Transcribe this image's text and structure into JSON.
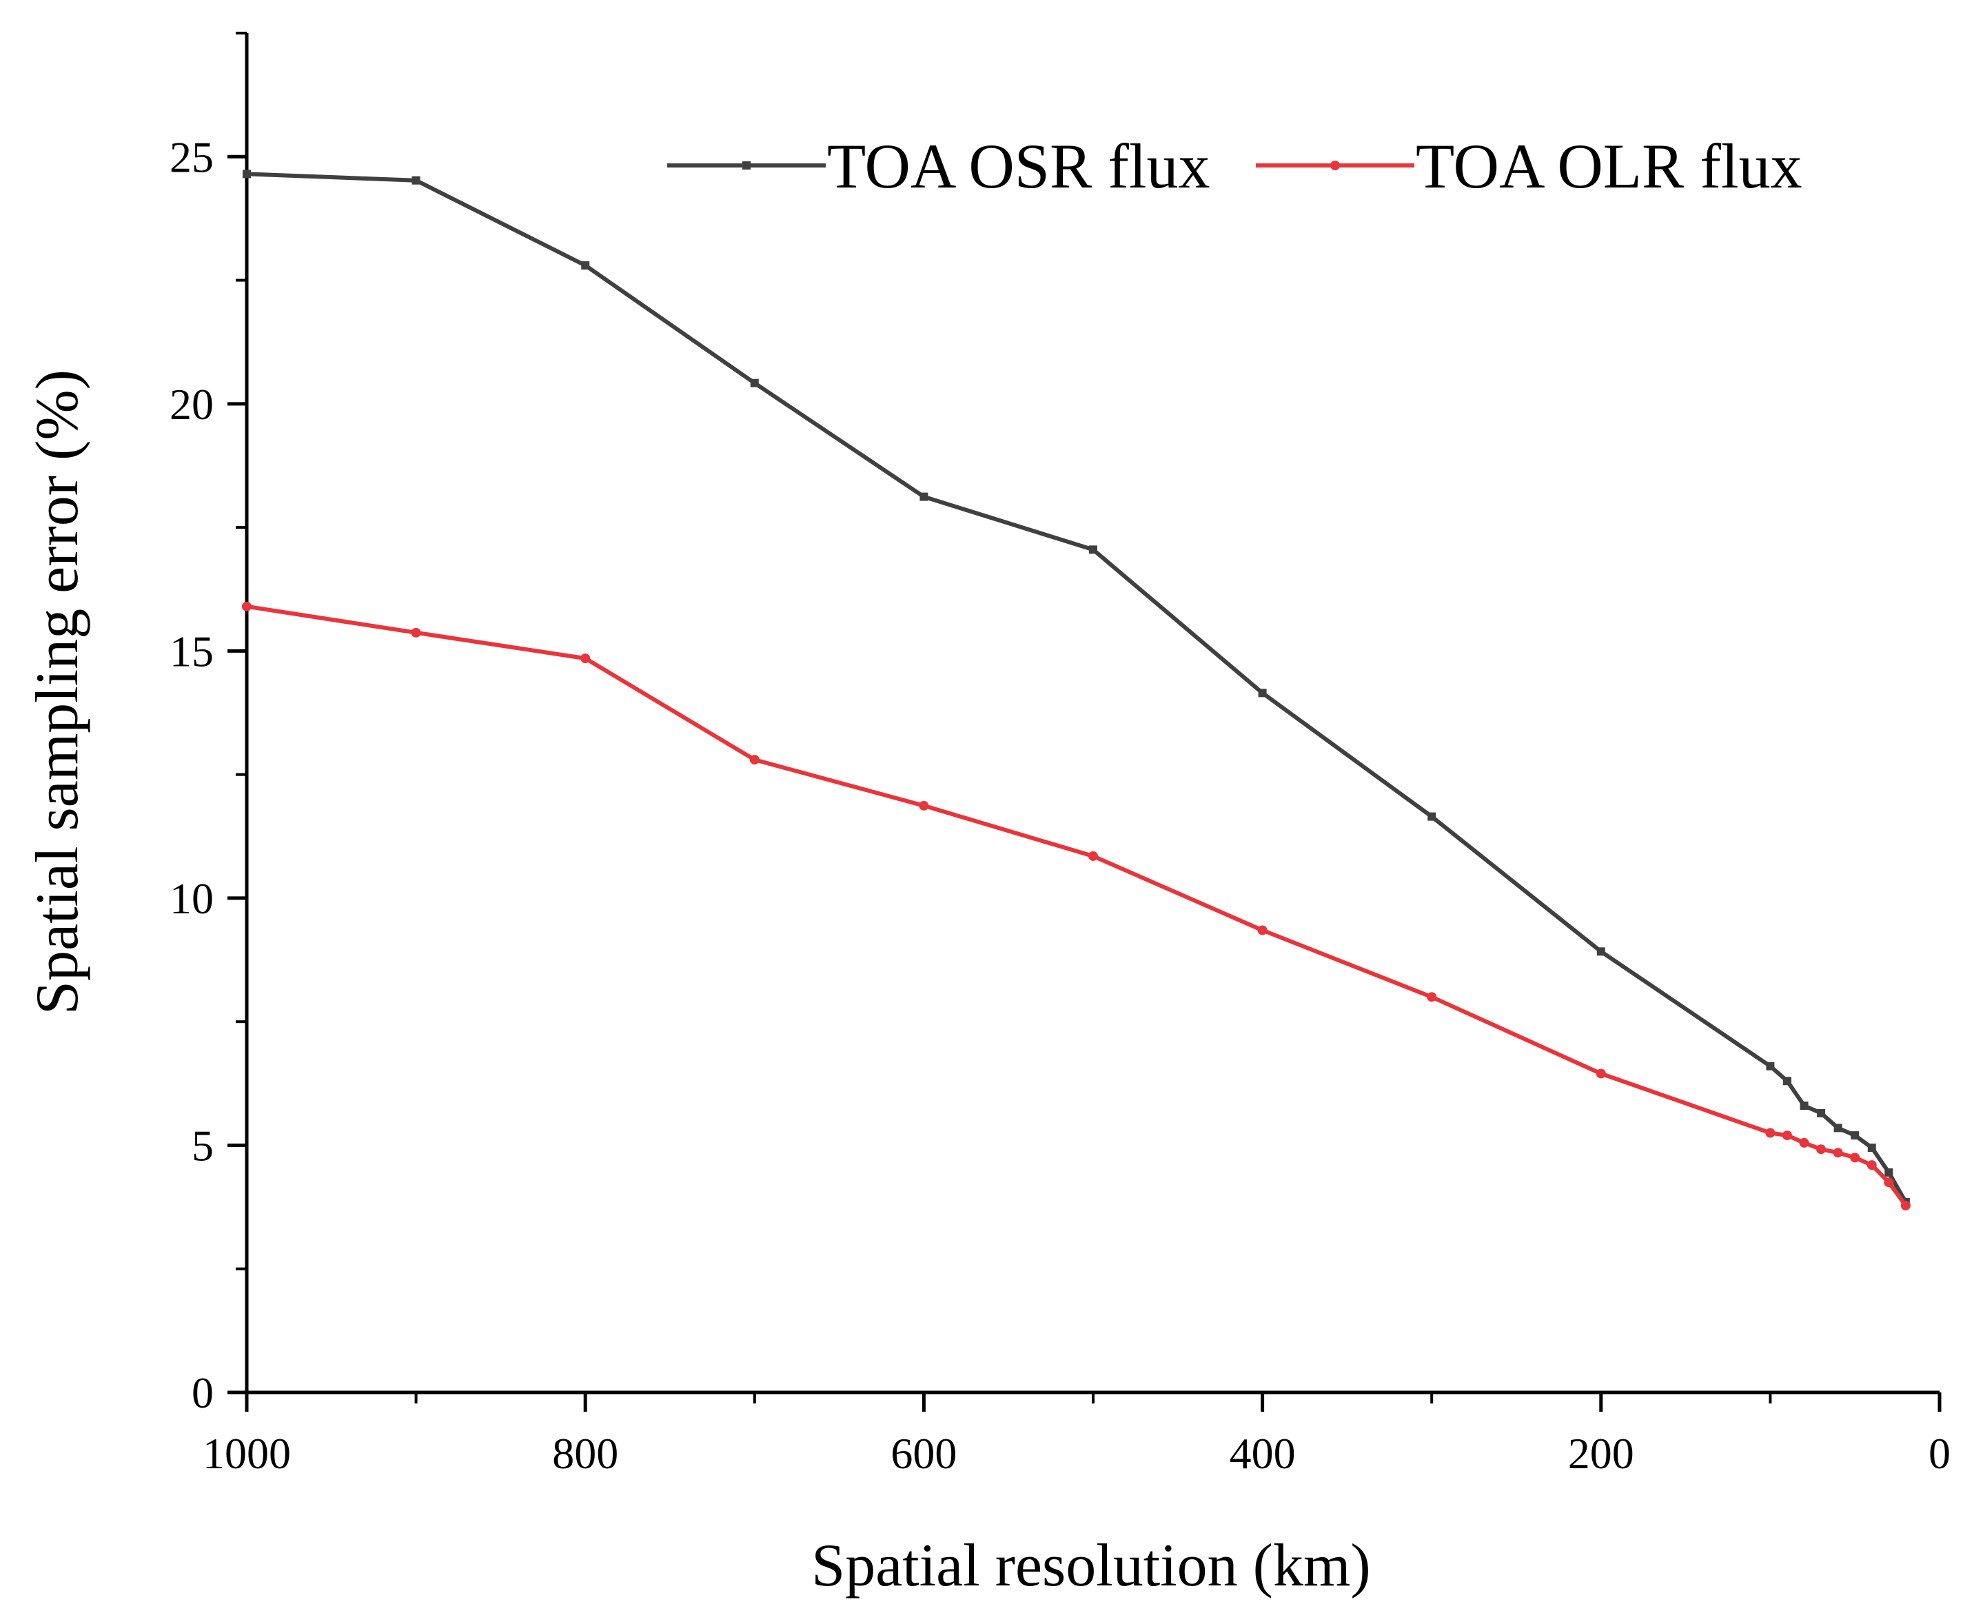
{
  "chart_data": {
    "type": "line",
    "title": "",
    "xlabel": "Spatial resolution (km)",
    "ylabel": "Spatial sampling error (%)",
    "xlim": [
      1000,
      0
    ],
    "ylim": [
      0,
      27.5
    ],
    "x_reversed": true,
    "x_ticks": [
      1000,
      800,
      600,
      400,
      200,
      0
    ],
    "y_ticks": [
      0,
      5,
      10,
      15,
      20,
      25
    ],
    "legend_position": "top-right",
    "grid": false,
    "series": [
      {
        "name": "TOA OSR flux",
        "color": "#404040",
        "marker": "square",
        "x": [
          1000,
          900,
          800,
          700,
          600,
          500,
          400,
          300,
          200,
          100,
          90,
          80,
          70,
          60,
          50,
          40,
          30,
          20
        ],
        "values": [
          24.65,
          24.52,
          22.8,
          20.42,
          18.12,
          17.05,
          14.15,
          11.65,
          8.92,
          6.6,
          6.3,
          5.8,
          5.65,
          5.35,
          5.2,
          4.95,
          4.45,
          3.85
        ]
      },
      {
        "name": "TOA OLR flux",
        "color": "#e8353b",
        "marker": "circle",
        "x": [
          1000,
          900,
          800,
          700,
          600,
          500,
          400,
          300,
          200,
          100,
          90,
          80,
          70,
          60,
          50,
          40,
          30,
          20
        ],
        "values": [
          15.9,
          15.37,
          14.85,
          12.8,
          11.87,
          10.85,
          9.35,
          8.0,
          6.45,
          5.25,
          5.2,
          5.05,
          4.92,
          4.85,
          4.75,
          4.6,
          4.25,
          3.78
        ]
      }
    ]
  }
}
